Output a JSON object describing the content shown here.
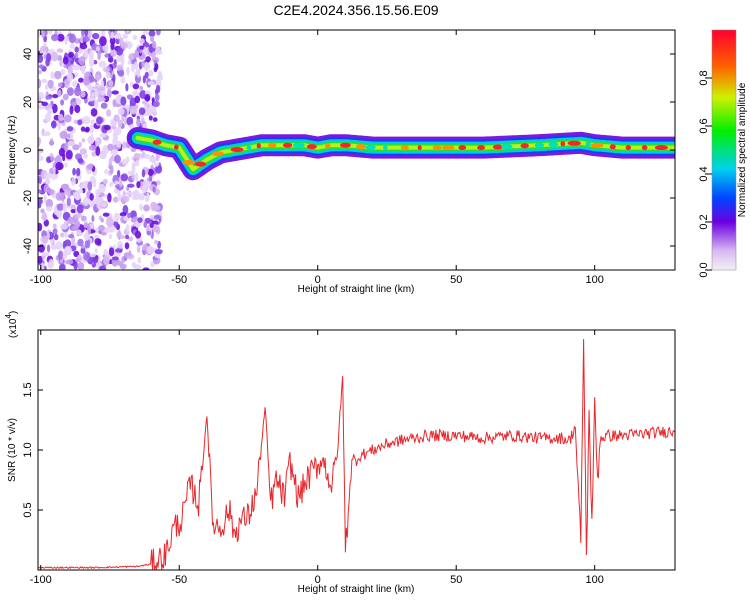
{
  "title": "C2E4.2024.356.15.56.E09",
  "colors": {
    "line": "#e8282c",
    "purple": "#7a1ae0"
  },
  "chart_data": [
    {
      "type": "heatmap",
      "xlabel": "Height of straight line (km)",
      "ylabel": "Frequency (Hz)",
      "xlim": [
        -101,
        129
      ],
      "ylim": [
        -50,
        50
      ],
      "xticks": [
        -100,
        -50,
        0,
        50,
        100
      ],
      "yticks": [
        -40,
        -20,
        0,
        20,
        40
      ],
      "colorbar": {
        "label": "Normalized spectral amplitude",
        "range": [
          0,
          1
        ],
        "ticks": [
          "0.0",
          "0.2",
          "0.4",
          "0.6",
          "0.8"
        ],
        "tick_values": [
          0.0,
          0.2,
          0.4,
          0.6,
          0.8
        ]
      },
      "trace": {
        "x": [
          -65,
          -60,
          -55,
          -50,
          -45,
          -40,
          -35,
          -30,
          -25,
          -20,
          -15,
          -10,
          -5,
          0,
          5,
          10,
          20,
          40,
          60,
          80,
          95,
          100,
          110,
          129
        ],
        "y": [
          5,
          4,
          2,
          1,
          -8,
          -4,
          -1,
          0,
          1,
          2,
          2,
          2,
          2,
          1,
          2,
          2,
          1,
          1,
          1,
          2,
          3,
          2,
          1,
          1
        ]
      },
      "noise_region_x": [
        -101,
        -59
      ]
    },
    {
      "type": "line",
      "xlabel": "Height of straight line (km)",
      "ylabel": "SNR (10 * v/v)",
      "multiplier_label": "(x10",
      "multiplier_exp": "4",
      "xlim": [
        -101,
        129
      ],
      "ylim": [
        0,
        2
      ],
      "xticks": [
        -100,
        -50,
        0,
        50,
        100
      ],
      "yticks": [
        0.5,
        1.0,
        1.5
      ],
      "ytick_labels": [
        "0.5",
        "1.0",
        "1.5"
      ],
      "x": [
        -101,
        -80,
        -65,
        -60,
        -55,
        -52,
        -49,
        -46,
        -43,
        -40,
        -38,
        -35,
        -32,
        -30,
        -28,
        -25,
        -22,
        -19,
        -17,
        -15,
        -12,
        -10,
        -7,
        -4,
        -1,
        2,
        5,
        7,
        9,
        10,
        12,
        15,
        20,
        25,
        30,
        35,
        40,
        50,
        60,
        70,
        80,
        88,
        91,
        93,
        95,
        96,
        97,
        98,
        99,
        100,
        101,
        102,
        105,
        110,
        120,
        129
      ],
      "y": [
        0.02,
        0.02,
        0.03,
        0.05,
        0.12,
        0.35,
        0.42,
        0.72,
        0.55,
        1.3,
        0.4,
        0.35,
        0.5,
        0.3,
        0.4,
        0.45,
        0.65,
        1.35,
        0.55,
        0.75,
        0.6,
        0.9,
        0.6,
        0.75,
        0.85,
        0.92,
        0.7,
        0.95,
        1.6,
        0.15,
        0.85,
        0.95,
        1.0,
        1.05,
        1.08,
        1.1,
        1.12,
        1.12,
        1.1,
        1.12,
        1.1,
        1.1,
        1.08,
        1.2,
        0.2,
        1.95,
        0.1,
        1.3,
        0.4,
        1.4,
        0.75,
        1.1,
        1.12,
        1.12,
        1.14,
        1.16
      ]
    }
  ]
}
